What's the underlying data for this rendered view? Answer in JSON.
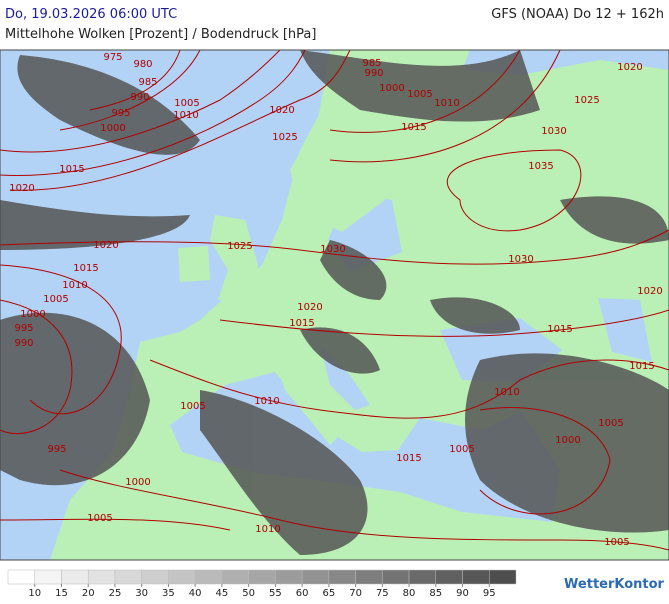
{
  "header": {
    "date_title": "Do, 19.03.2026 06:00 UTC",
    "model_label": "GFS (NOAA) Do 12 + 162h",
    "subtitle": "Mittelhohe Wolken [Prozent] / Bodendruck [hPa]"
  },
  "isobar_labels": [
    975,
    980,
    985,
    990,
    995,
    1000,
    1005,
    1010,
    1015,
    1020,
    1020,
    1025,
    985,
    990,
    1000,
    1005,
    1010,
    1015,
    1020,
    1025,
    1030,
    1035,
    1020,
    1025,
    1030,
    1030,
    1015,
    1010,
    1005,
    1000,
    995,
    990,
    1020,
    1015,
    1015,
    1020,
    1015,
    1010,
    1005,
    1010,
    1005,
    1000,
    995,
    1005,
    1015,
    1000,
    1005,
    1010,
    1005
  ],
  "legend": {
    "ticks": [
      10,
      15,
      20,
      25,
      30,
      35,
      40,
      45,
      50,
      55,
      60,
      65,
      70,
      75,
      80,
      85,
      90,
      95
    ],
    "colors": [
      "#ffffff",
      "#f4f4f4",
      "#ebebeb",
      "#e2e2e2",
      "#d8d8d8",
      "#cecece",
      "#c4c4c4",
      "#bababa",
      "#b0b0b0",
      "#a6a6a6",
      "#9c9c9c",
      "#929292",
      "#888888",
      "#7e7e7e",
      "#747474",
      "#6a6a6a",
      "#606060",
      "#575757",
      "#4e4e4e"
    ]
  },
  "brand": "WetterKontor"
}
